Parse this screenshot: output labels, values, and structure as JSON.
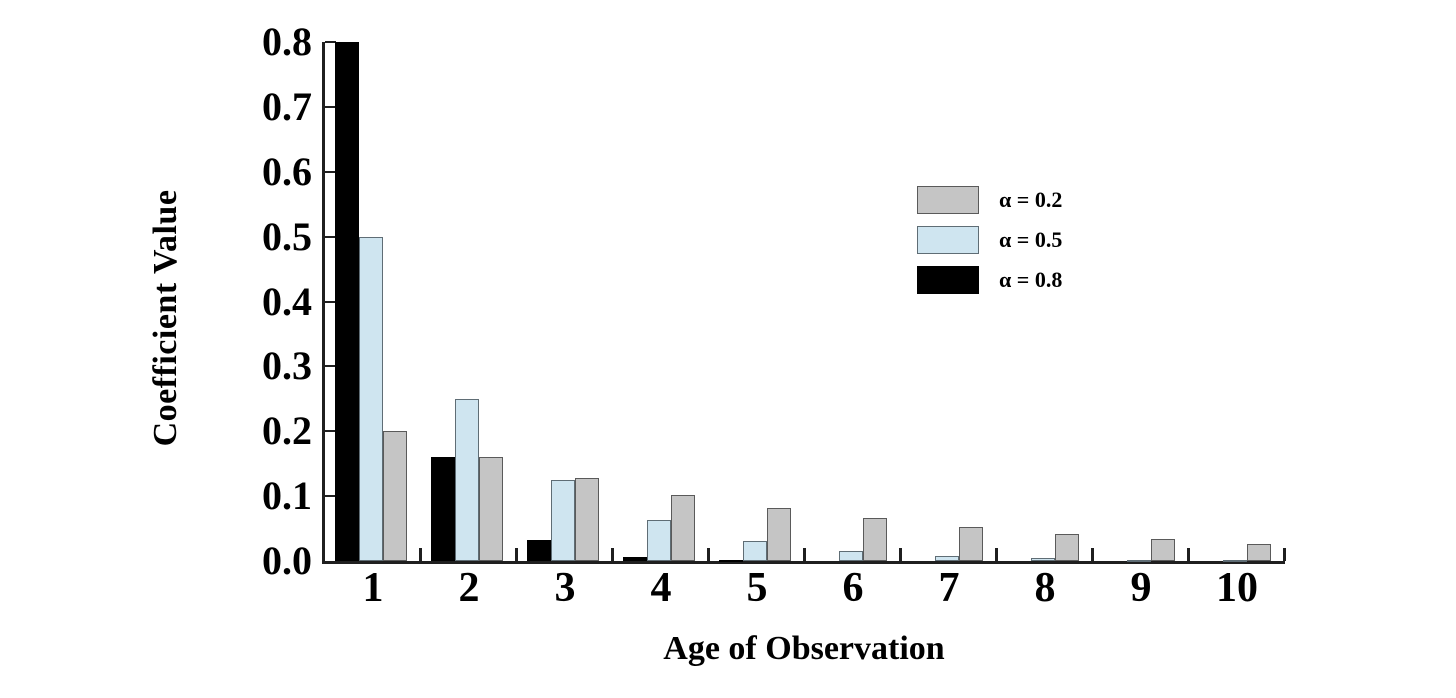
{
  "figure": {
    "background": "#ffffff",
    "axis_color": "#1f1f1f",
    "text_color": "#000000"
  },
  "chart_data": {
    "type": "bar",
    "title": "",
    "xlabel": "Age of Observation",
    "ylabel": "Coefficient Value",
    "categories": [
      "1",
      "2",
      "3",
      "4",
      "5",
      "6",
      "7",
      "8",
      "9",
      "10"
    ],
    "ylim": [
      0,
      0.8
    ],
    "ytick_values": [
      0.0,
      0.1,
      0.2,
      0.3,
      0.4,
      0.5,
      0.6,
      0.7,
      0.8
    ],
    "ytick_labels": [
      "0.0",
      "0.1",
      "0.2",
      "0.3",
      "0.4",
      "0.5",
      "0.6",
      "0.7",
      "0.8"
    ],
    "grid": false,
    "legend_position": "inside-upper-right",
    "series": [
      {
        "name": "α = 0.2",
        "alpha": 0.2,
        "fill": "#c5c5c5",
        "border": "#5a5a5a",
        "values": [
          0.2,
          0.16,
          0.128,
          0.1024,
          0.08192,
          0.06554,
          0.05243,
          0.04194,
          0.03355,
          0.02684
        ]
      },
      {
        "name": "α = 0.5",
        "alpha": 0.5,
        "fill": "#cfe5f0",
        "border": "#5f6d75",
        "values": [
          0.5,
          0.25,
          0.125,
          0.0625,
          0.03125,
          0.01563,
          0.00781,
          0.00391,
          0.00195,
          0.00098
        ]
      },
      {
        "name": "α = 0.8",
        "alpha": 0.8,
        "fill": "#000000",
        "border": "#000000",
        "values": [
          0.8,
          0.16,
          0.032,
          0.0064,
          0.00128,
          0.00026,
          5e-05,
          1e-05,
          0,
          0
        ]
      }
    ],
    "bar_draw_order": [
      2,
      1,
      0
    ],
    "legend_order": [
      0,
      1,
      2
    ]
  }
}
